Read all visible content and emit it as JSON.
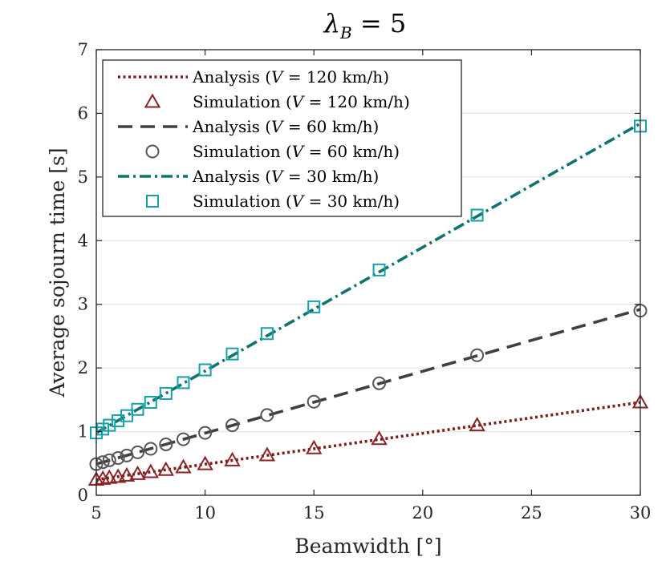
{
  "chart_data": {
    "type": "line",
    "title": "λ_B = 5",
    "title_main": "λ",
    "title_sub": "B",
    "title_rest": " = 5",
    "xlabel": "Beamwidth [°]",
    "ylabel": "Average sojourn time [s]",
    "xlim": [
      5,
      30
    ],
    "ylim": [
      0,
      7
    ],
    "xticks": [
      5,
      10,
      15,
      20,
      25,
      30
    ],
    "yticks": [
      0,
      1,
      2,
      3,
      4,
      5,
      6,
      7
    ],
    "grid": "horizontal",
    "legend_position": "top-left",
    "series": [
      {
        "name": "Analysis (V = 120 km/h)",
        "kind": "analysis",
        "color": "#7b1c1c",
        "style": "dotted",
        "x": [
          5,
          30
        ],
        "y": [
          0.245,
          1.46
        ]
      },
      {
        "name": "Simulation (V = 120 km/h)",
        "kind": "simulation",
        "color": "#8b2226",
        "marker": "triangle",
        "x": [
          5,
          5.3,
          5.6,
          6,
          6.4,
          6.9,
          7.5,
          8.2,
          9,
          10,
          11.25,
          12.85,
          15,
          18,
          22.5,
          30
        ],
        "y": [
          0.245,
          0.26,
          0.275,
          0.29,
          0.31,
          0.335,
          0.365,
          0.4,
          0.44,
          0.49,
          0.55,
          0.63,
          0.74,
          0.885,
          1.1,
          1.46
        ]
      },
      {
        "name": "Analysis (V = 60 km/h)",
        "kind": "analysis",
        "color": "#404040",
        "style": "dashed",
        "x": [
          5,
          30
        ],
        "y": [
          0.49,
          2.92
        ]
      },
      {
        "name": "Simulation (V = 60 km/h)",
        "kind": "simulation",
        "color": "#555555",
        "marker": "circle",
        "x": [
          5,
          5.3,
          5.6,
          6,
          6.4,
          6.9,
          7.5,
          8.2,
          9,
          10,
          11.25,
          12.85,
          15,
          18,
          22.5,
          30
        ],
        "y": [
          0.49,
          0.52,
          0.55,
          0.585,
          0.625,
          0.675,
          0.73,
          0.8,
          0.88,
          0.98,
          1.1,
          1.26,
          1.47,
          1.76,
          2.2,
          2.9
        ]
      },
      {
        "name": "Analysis (V = 30 km/h)",
        "kind": "analysis",
        "color": "#117272",
        "style": "dashdot",
        "x": [
          5,
          30
        ],
        "y": [
          0.98,
          5.84
        ]
      },
      {
        "name": "Simulation (V = 30 km/h)",
        "kind": "simulation",
        "color": "#16a0a8",
        "marker": "square",
        "x": [
          5,
          5.3,
          5.6,
          6,
          6.4,
          6.9,
          7.5,
          8.2,
          9,
          10,
          11.25,
          12.85,
          15,
          18,
          22.5,
          30
        ],
        "y": [
          0.98,
          1.04,
          1.1,
          1.17,
          1.25,
          1.35,
          1.46,
          1.6,
          1.77,
          1.97,
          2.22,
          2.54,
          2.96,
          3.54,
          4.4,
          5.8
        ]
      }
    ],
    "legend": [
      {
        "prefix": "Analysis (",
        "var": "V",
        "suffix": " = 120 km/h)"
      },
      {
        "prefix": "Simulation (",
        "var": "V",
        "suffix": " = 120 km/h)"
      },
      {
        "prefix": "Analysis (",
        "var": "V",
        "suffix": " = 60 km/h)"
      },
      {
        "prefix": "Simulation (",
        "var": "V",
        "suffix": " = 60 km/h)"
      },
      {
        "prefix": "Analysis (",
        "var": "V",
        "suffix": " = 30 km/h)"
      },
      {
        "prefix": "Simulation (",
        "var": "V",
        "suffix": " = 30 km/h)"
      }
    ]
  }
}
